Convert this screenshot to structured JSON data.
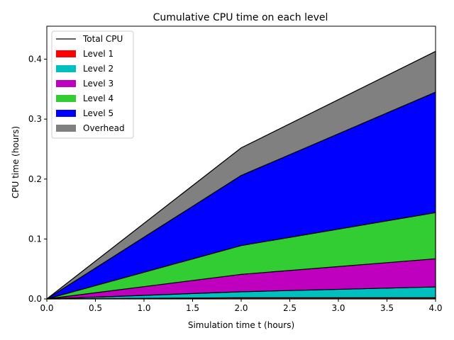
{
  "chart_data": {
    "type": "area",
    "title": "Cumulative CPU time on each level",
    "xlabel": "Simulation time t (hours)",
    "ylabel": "CPU time (hours)",
    "xlim": [
      0.0,
      4.0
    ],
    "ylim": [
      0.0,
      0.455
    ],
    "xticks": [
      "0.0",
      "0.5",
      "1.0",
      "1.5",
      "2.0",
      "2.5",
      "3.0",
      "3.5",
      "4.0"
    ],
    "yticks": [
      "0.0",
      "0.1",
      "0.2",
      "0.3",
      "0.4"
    ],
    "x": [
      0.0,
      2.0,
      4.0
    ],
    "stacked": true,
    "grid": false,
    "legend_position": "upper-left",
    "total": {
      "name": "Total CPU",
      "color": "#000000",
      "values": [
        0.0,
        0.252,
        0.413
      ]
    },
    "series": [
      {
        "name": "Level 1",
        "color": "#ff0000",
        "values": [
          0.0,
          0.002,
          0.002
        ]
      },
      {
        "name": "Level 2",
        "color": "#00bfbf",
        "values": [
          0.0,
          0.01,
          0.018
        ]
      },
      {
        "name": "Level 3",
        "color": "#bf00bf",
        "values": [
          0.0,
          0.029,
          0.047
        ]
      },
      {
        "name": "Level 4",
        "color": "#32cd32",
        "values": [
          0.0,
          0.048,
          0.077
        ]
      },
      {
        "name": "Level 5",
        "color": "#0000ff",
        "values": [
          0.0,
          0.117,
          0.201
        ]
      },
      {
        "name": "Overhead",
        "color": "#808080",
        "values": [
          0.0,
          0.046,
          0.068
        ]
      }
    ]
  }
}
